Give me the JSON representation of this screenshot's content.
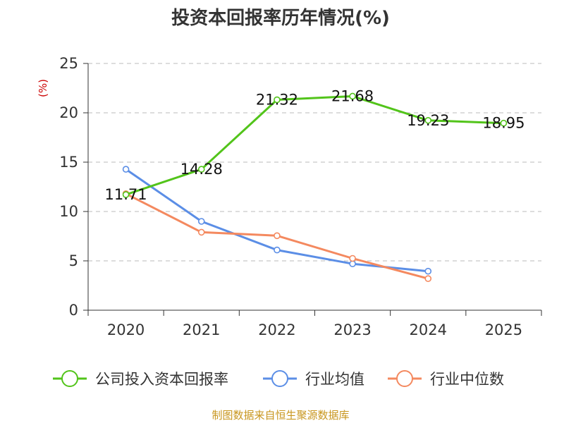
{
  "chart_data": {
    "type": "line",
    "title": "投资本回报率历年情况(%)",
    "unit_label": "(%)",
    "categories": [
      "2020",
      "2021",
      "2022",
      "2023",
      "2024",
      "2025"
    ],
    "ylim": [
      0,
      25
    ],
    "yticks": [
      0,
      5,
      10,
      15,
      20,
      25
    ],
    "grid": true,
    "legend_position": "bottom",
    "series": [
      {
        "name": "公司投入资本回报率",
        "color": "#52c41a",
        "values": [
          11.71,
          14.28,
          21.32,
          21.68,
          19.23,
          18.95
        ],
        "labels": [
          "11.71",
          "14.28",
          "21.32",
          "21.68",
          "19.23",
          "18.95"
        ]
      },
      {
        "name": "行业均值",
        "color": "#5b8ee6",
        "values": [
          14.28,
          9.0,
          6.1,
          4.7,
          3.95,
          null
        ]
      },
      {
        "name": "行业中位数",
        "color": "#f4895f",
        "values": [
          11.8,
          7.9,
          7.55,
          5.25,
          3.2,
          null
        ]
      }
    ],
    "source": "制图数据来自恒生聚源数据库"
  }
}
